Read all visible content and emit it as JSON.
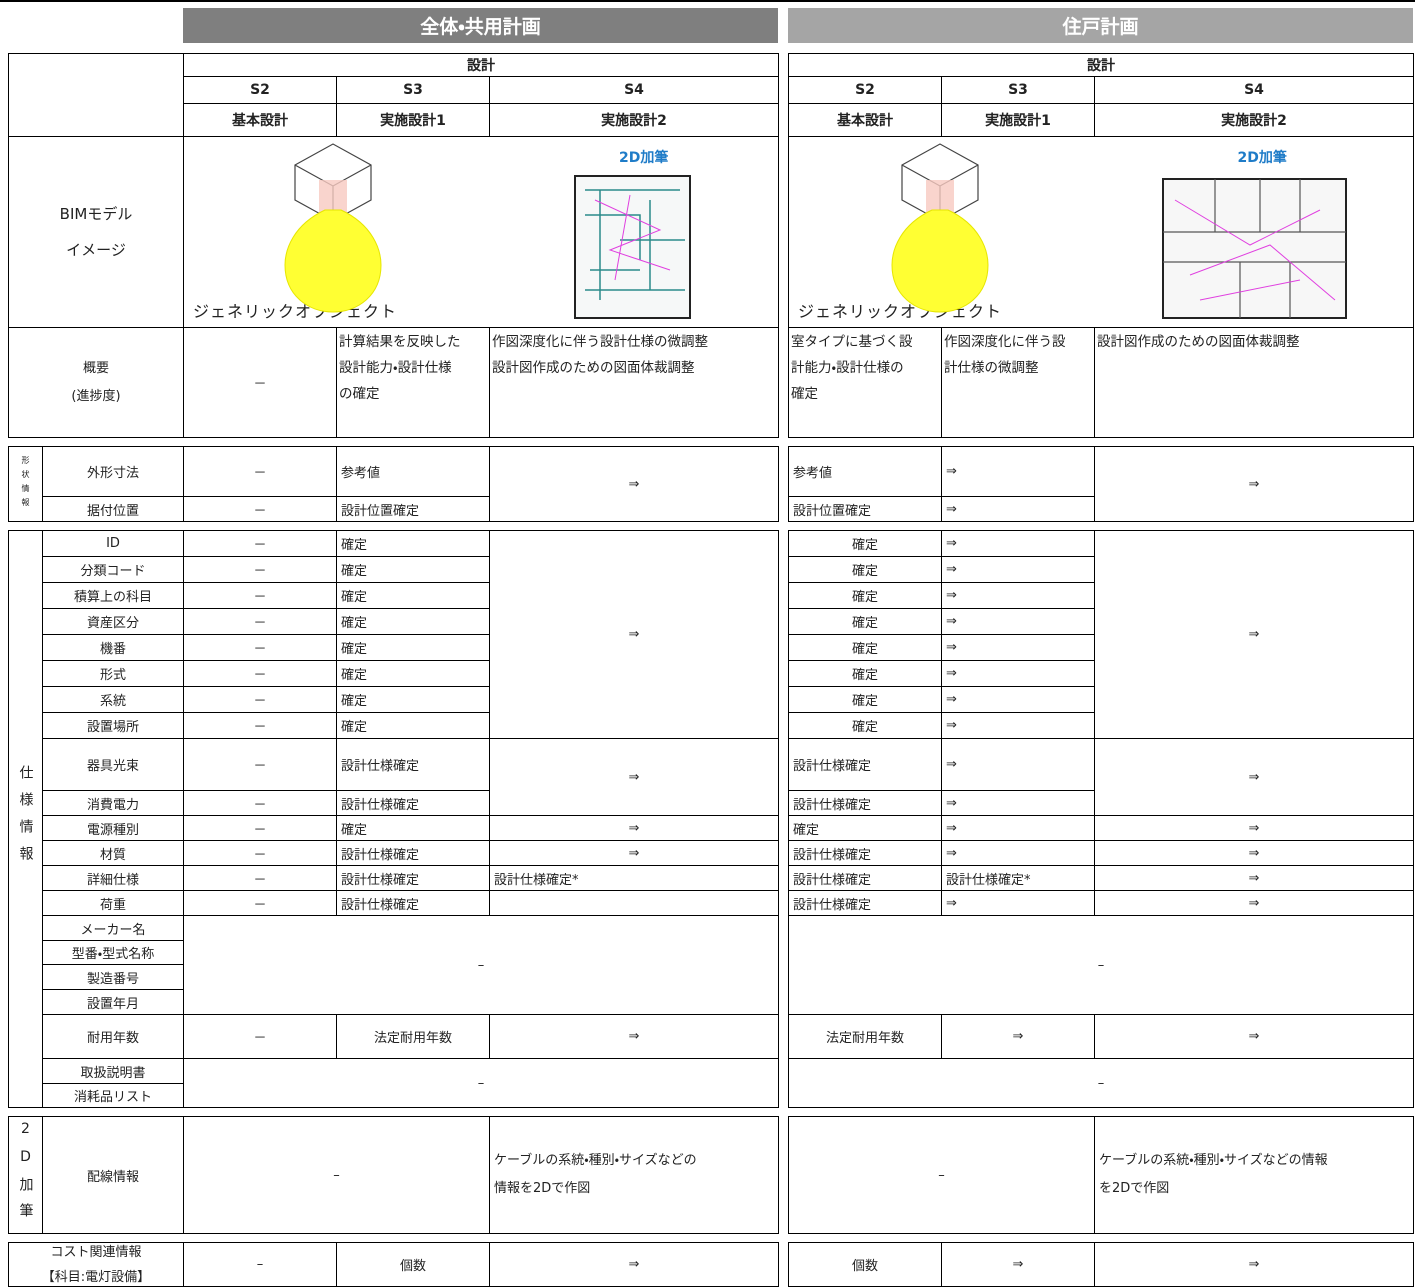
{
  "header": {
    "left_title": "全体・共用計画",
    "right_title": "住戸計画"
  },
  "left": {
    "phase": "設計",
    "stages": [
      {
        "code": "S2",
        "name": "基本設計"
      },
      {
        "code": "S3",
        "name": "実施設計1"
      },
      {
        "code": "S4",
        "name": "実施設計2"
      }
    ],
    "image_caption": "ジェネリックオブジェクト",
    "drawing_caption": "2D加筆"
  },
  "right": {
    "phase": "設計",
    "stages": [
      {
        "code": "S2",
        "name": "基本設計"
      },
      {
        "code": "S3",
        "name": "実施設計1"
      },
      {
        "code": "S4",
        "name": "実施設計2"
      }
    ],
    "image_caption": "ジェネリックオブジェクト",
    "drawing_caption": "2D加筆"
  },
  "bim_label": [
    "BIMモデル",
    "イメージ"
  ],
  "overview": {
    "label": [
      "概要",
      "(進捗度)"
    ],
    "left": [
      "－",
      [
        "計算結果を反映した",
        "設計能力・設計仕様",
        "の確定"
      ],
      [
        "作図深度化に伴う設計仕様の微調整",
        "設計図作成のための図面体裁調整"
      ]
    ],
    "right": [
      [
        "室タイプに基づく設",
        "計能力・設計仕様の",
        "確定"
      ],
      [
        "作図深度化に伴う設",
        "計仕様の微調整"
      ],
      [
        "設計図作成のための図面体裁調整"
      ]
    ]
  },
  "groups": {
    "shape": "形状情報",
    "spec": "仕様情報",
    "markup": "2D加筆"
  },
  "shape_rows": [
    {
      "label": "外形寸法",
      "left": [
        "－",
        "参考値",
        "⇒"
      ],
      "right": [
        "参考値",
        "⇒",
        "⇒"
      ]
    },
    {
      "label": "据付位置",
      "left": [
        "－",
        "設計位置確定"
      ],
      "right": [
        "設計位置確定",
        "⇒"
      ]
    }
  ],
  "spec_rows": [
    {
      "label": "ID",
      "left": [
        "－",
        "確定",
        "⇒"
      ],
      "right": [
        "確定",
        "⇒",
        "⇒"
      ]
    },
    {
      "label": "分類コード",
      "left": [
        "－",
        "確定"
      ],
      "right": [
        "確定",
        "⇒"
      ]
    },
    {
      "label": "積算上の科目",
      "left": [
        "－",
        "確定"
      ],
      "right": [
        "確定",
        "⇒"
      ]
    },
    {
      "label": "資産区分",
      "left": [
        "－",
        "確定"
      ],
      "right": [
        "確定",
        "⇒"
      ]
    },
    {
      "label": "機番",
      "left": [
        "－",
        "確定"
      ],
      "right": [
        "確定",
        "⇒"
      ]
    },
    {
      "label": "形式",
      "left": [
        "－",
        "確定"
      ],
      "right": [
        "確定",
        "⇒"
      ]
    },
    {
      "label": "系統",
      "left": [
        "－",
        "確定"
      ],
      "right": [
        "確定",
        "⇒"
      ]
    },
    {
      "label": "設置場所",
      "left": [
        "－",
        "確定"
      ],
      "right": [
        "確定",
        "⇒"
      ]
    },
    {
      "label": "器具光束",
      "left": [
        "－",
        "設計仕様確定",
        "⇒"
      ],
      "right": [
        "設計仕様確定",
        "⇒",
        "⇒"
      ]
    },
    {
      "label": "消費電力",
      "left": [
        "－",
        "設計仕様確定"
      ],
      "right": [
        "設計仕様確定",
        "⇒"
      ]
    },
    {
      "label": "電源種別",
      "left": [
        "－",
        "確定",
        "⇒"
      ],
      "right": [
        "確定",
        "⇒",
        "⇒"
      ]
    },
    {
      "label": "材質",
      "left": [
        "－",
        "設計仕様確定",
        "⇒"
      ],
      "right": [
        "設計仕様確定",
        "⇒",
        "⇒"
      ]
    },
    {
      "label": "詳細仕様",
      "left": [
        "－",
        "設計仕様確定",
        "設計仕様確定*"
      ],
      "right": [
        "設計仕様確定",
        "設計仕様確定*",
        "⇒"
      ]
    },
    {
      "label": "荷重",
      "left": [
        "－",
        "設計仕様確定"
      ],
      "right": [
        "設計仕様確定",
        "⇒",
        "⇒"
      ]
    },
    {
      "label": "メーカー名",
      "left": [
        "–"
      ],
      "right": [
        "–"
      ]
    },
    {
      "label": "型番・型式名称"
    },
    {
      "label": "製造番号"
    },
    {
      "label": "設置年月"
    },
    {
      "label": "耐用年数",
      "left": [
        "－",
        "法定耐用年数",
        "⇒"
      ],
      "right": [
        "法定耐用年数",
        "⇒",
        "⇒"
      ]
    },
    {
      "label": "取扱説明書",
      "left": [
        "–"
      ],
      "right": [
        "–"
      ]
    },
    {
      "label": "消耗品リスト"
    }
  ],
  "markup_row": {
    "label": "配線情報",
    "left": [
      "–",
      [
        "ケーブルの系統・種別・サイズなどの",
        "情報を2Dで作図"
      ]
    ],
    "right": [
      "–",
      [
        "ケーブルの系統・種別・サイズなどの情報",
        "を2Dで作図"
      ]
    ]
  },
  "cost_row": {
    "label": [
      "コスト関連情報",
      "【科目:電灯設備】"
    ],
    "left": [
      "–",
      "個数",
      "⇒"
    ],
    "right": [
      "個数",
      "⇒",
      "⇒"
    ]
  }
}
